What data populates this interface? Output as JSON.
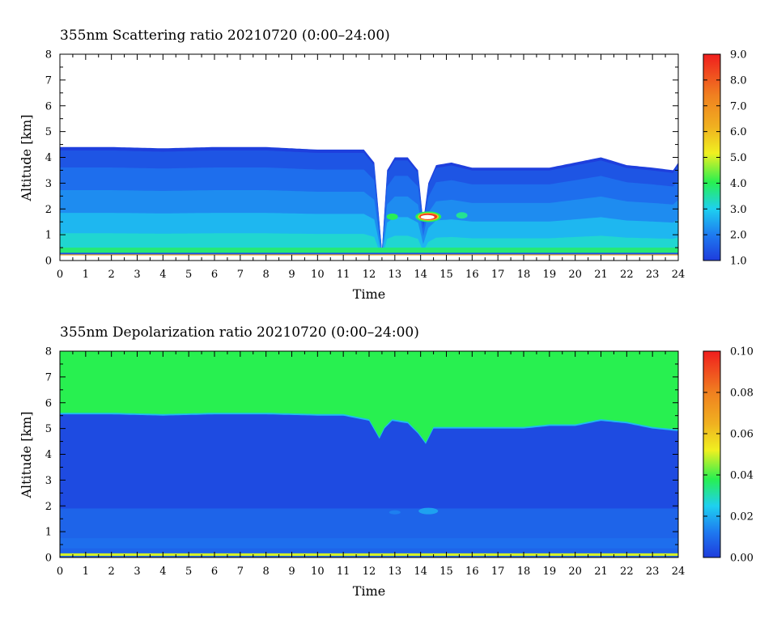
{
  "chart_data": [
    {
      "type": "heatmap",
      "title": "355nm Scattering ratio  20210720 (0:00–24:00)",
      "xlabel": "Time",
      "ylabel": "Altitude [km]",
      "xlim": [
        0,
        24
      ],
      "ylim": [
        0,
        8
      ],
      "x_ticks": [
        "0",
        "1",
        "2",
        "3",
        "4",
        "5",
        "6",
        "7",
        "8",
        "9",
        "10",
        "11",
        "12",
        "13",
        "14",
        "15",
        "16",
        "17",
        "18",
        "19",
        "20",
        "21",
        "22",
        "23",
        "24"
      ],
      "y_ticks": [
        "0",
        "1",
        "2",
        "3",
        "4",
        "5",
        "6",
        "7",
        "8"
      ],
      "colorbar": {
        "range": [
          1.0,
          9.0
        ],
        "tick_labels": [
          "1.0",
          "2.0",
          "3.0",
          "4.0",
          "5.0",
          "6.0",
          "7.0",
          "8.0",
          "9.0"
        ],
        "colors": [
          "#1e3cdc",
          "#1ed0f0",
          "#28f050",
          "#f0f020",
          "#f08020",
          "#f01e1e"
        ]
      },
      "layers": {
        "profile_time": [
          0,
          2,
          4,
          6,
          8,
          10,
          11,
          11.8,
          12.2,
          12.5,
          12.7,
          13.0,
          13.5,
          13.9,
          14.1,
          14.3,
          14.6,
          15.2,
          16,
          17,
          18,
          19,
          20,
          21,
          22,
          23,
          23.8,
          24
        ],
        "layer_top_km": [
          4.4,
          4.4,
          4.35,
          4.4,
          4.4,
          4.3,
          4.3,
          4.3,
          3.8,
          0.4,
          3.5,
          4.0,
          4.0,
          3.5,
          1.5,
          3.0,
          3.7,
          3.8,
          3.6,
          3.6,
          3.6,
          3.6,
          3.8,
          4.0,
          3.7,
          3.6,
          3.5,
          3.8
        ],
        "levels": [
          1.4,
          1.8,
          2.2,
          2.7,
          3.2
        ],
        "level_fraction_of_top": [
          0.97,
          0.82,
          0.62,
          0.42,
          0.24
        ],
        "surface_band_km": [
          0.3,
          0.5
        ],
        "surface_band_value": 3.8,
        "hotspots": [
          {
            "time": 14.3,
            "altitude_km": 1.7,
            "value": 8.5
          },
          {
            "time": 12.9,
            "altitude_km": 1.7,
            "value": 4.0
          },
          {
            "time": 15.6,
            "altitude_km": 1.75,
            "value": 3.6
          }
        ]
      }
    },
    {
      "type": "heatmap",
      "title": "355nm Depolarization ratio  20210720 (0:00–24:00)",
      "xlabel": "Time",
      "ylabel": "Altitude [km]",
      "xlim": [
        0,
        24
      ],
      "ylim": [
        0,
        8
      ],
      "x_ticks": [
        "0",
        "1",
        "2",
        "3",
        "4",
        "5",
        "6",
        "7",
        "8",
        "9",
        "10",
        "11",
        "12",
        "13",
        "14",
        "15",
        "16",
        "17",
        "18",
        "19",
        "20",
        "21",
        "22",
        "23",
        "24"
      ],
      "y_ticks": [
        "0",
        "1",
        "2",
        "3",
        "4",
        "5",
        "6",
        "7",
        "8"
      ],
      "colorbar": {
        "range": [
          0.0,
          0.1
        ],
        "tick_labels": [
          "0.00",
          "0.02",
          "0.04",
          "0.06",
          "0.08",
          "0.10"
        ],
        "colors": [
          "#1e3cdc",
          "#1ed0f0",
          "#28f050",
          "#f0f020",
          "#f08020",
          "#f01e1e"
        ]
      },
      "layers": {
        "boundary_time": [
          0,
          2,
          4,
          6,
          8,
          10,
          11,
          12,
          12.4,
          12.6,
          12.9,
          13.5,
          13.9,
          14.2,
          14.5,
          15,
          16,
          17,
          18,
          19,
          20,
          21,
          22,
          23,
          24
        ],
        "boundary_km": [
          5.55,
          5.55,
          5.5,
          5.55,
          5.55,
          5.5,
          5.5,
          5.3,
          4.6,
          5.0,
          5.3,
          5.2,
          4.8,
          4.4,
          5.0,
          5.0,
          5.0,
          5.0,
          5.0,
          5.1,
          5.1,
          5.3,
          5.2,
          5.0,
          4.9
        ],
        "upper_value": 0.038,
        "main_value": 0.003,
        "lower_value": 0.008,
        "lower_band_km": 1.9,
        "surface_line_km": 0.1,
        "surface_line_value": 0.05,
        "hotspot": {
          "time": 14.3,
          "altitude_km": 1.8,
          "value": 0.018
        }
      }
    }
  ]
}
